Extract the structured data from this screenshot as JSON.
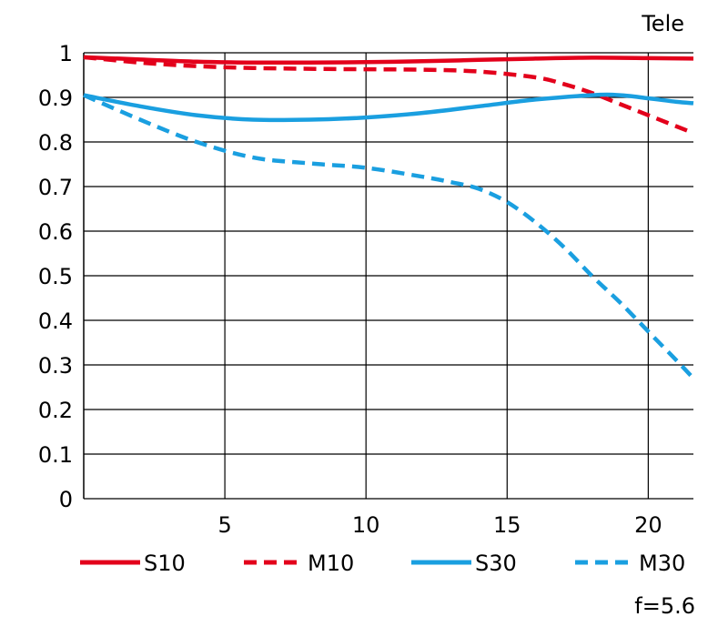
{
  "header": {
    "mode_label": "Tele"
  },
  "footer": {
    "aperture_label": "f=5.6"
  },
  "colors": {
    "red": "#e3001b",
    "blue": "#1a9fe0"
  },
  "chart_data": {
    "type": "line",
    "xlim": [
      0,
      21.6
    ],
    "ylim": [
      0,
      1
    ],
    "x_ticks": [
      5,
      10,
      15,
      20
    ],
    "x_tick_labels": [
      "5",
      "10",
      "15",
      "20"
    ],
    "y_ticks": [
      0,
      0.1,
      0.2,
      0.3,
      0.4,
      0.5,
      0.6,
      0.7,
      0.8,
      0.9,
      1
    ],
    "y_tick_labels": [
      "0",
      "0.1",
      "0.2",
      "0.3",
      "0.4",
      "0.5",
      "0.6",
      "0.7",
      "0.8",
      "0.9",
      "1"
    ],
    "grid": true,
    "legend_position": "bottom",
    "series": [
      {
        "name": "S10",
        "color": "red",
        "dashed": false,
        "x": [
          0,
          2,
          4,
          6,
          8,
          10,
          12,
          14,
          16,
          18,
          20,
          21.6
        ],
        "y": [
          0.99,
          0.985,
          0.98,
          0.978,
          0.978,
          0.979,
          0.981,
          0.984,
          0.987,
          0.989,
          0.988,
          0.987
        ]
      },
      {
        "name": "M10",
        "color": "red",
        "dashed": true,
        "x": [
          0,
          2,
          4,
          6,
          8,
          10,
          12,
          14,
          16,
          17,
          18,
          19,
          20,
          21,
          21.6
        ],
        "y": [
          0.99,
          0.978,
          0.97,
          0.966,
          0.964,
          0.963,
          0.962,
          0.958,
          0.945,
          0.93,
          0.91,
          0.885,
          0.86,
          0.835,
          0.82
        ]
      },
      {
        "name": "S30",
        "color": "blue",
        "dashed": false,
        "x": [
          0,
          2,
          4,
          6,
          8,
          10,
          12,
          14,
          16,
          18,
          19,
          20,
          21,
          21.6
        ],
        "y": [
          0.905,
          0.88,
          0.86,
          0.85,
          0.85,
          0.855,
          0.865,
          0.88,
          0.895,
          0.905,
          0.905,
          0.898,
          0.89,
          0.887
        ]
      },
      {
        "name": "M30",
        "color": "blue",
        "dashed": true,
        "x": [
          0,
          2,
          4,
          6,
          8,
          10,
          12,
          13,
          14,
          15,
          16,
          17,
          18,
          19,
          20,
          21,
          21.6
        ],
        "y": [
          0.905,
          0.85,
          0.8,
          0.765,
          0.752,
          0.742,
          0.722,
          0.71,
          0.695,
          0.665,
          0.62,
          0.565,
          0.5,
          0.44,
          0.375,
          0.31,
          0.27
        ]
      }
    ]
  }
}
